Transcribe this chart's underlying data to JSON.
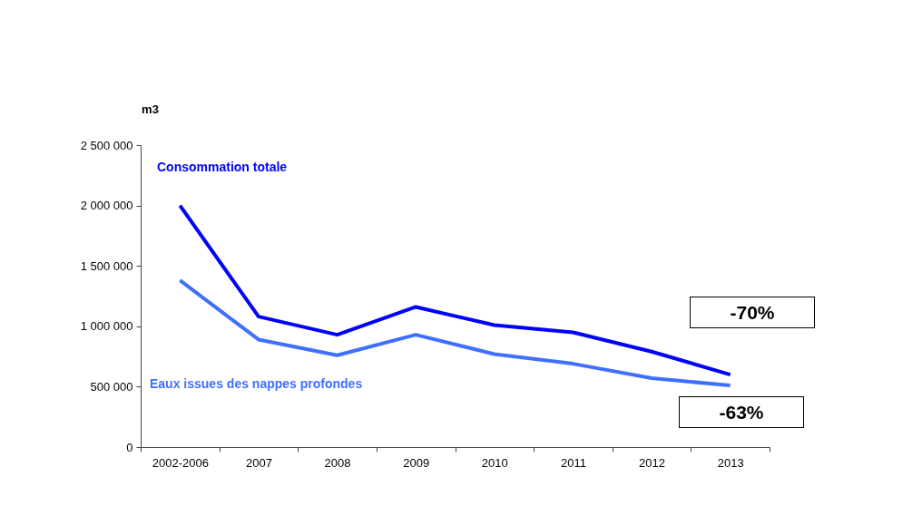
{
  "chart_data": {
    "type": "line",
    "ylabel": "m3",
    "categories": [
      "2002-2006",
      "2007",
      "2008",
      "2009",
      "2010",
      "2011",
      "2012",
      "2013"
    ],
    "series": [
      {
        "name": "Consommation totale",
        "color": "#0000ff",
        "values": [
          2000000,
          1080000,
          930000,
          1160000,
          1010000,
          950000,
          790000,
          600000
        ]
      },
      {
        "name": "Eaux issues des nappes profondes",
        "color": "#3f6fff",
        "values": [
          1380000,
          890000,
          760000,
          930000,
          770000,
          690000,
          570000,
          510000
        ]
      }
    ],
    "ylim": [
      0,
      2500000
    ],
    "yticks": [
      0,
      {
        "value": 500000,
        "label": "500 000"
      },
      {
        "value": 1000000,
        "label": "1 000 000"
      },
      {
        "value": 1500000,
        "label": "1 500 000"
      },
      {
        "value": 2000000,
        "label": "2 000 000"
      },
      {
        "value": 2500000,
        "label": "2 500 000"
      }
    ],
    "grid": false,
    "legend": false,
    "marker": "none",
    "line_style": "solid",
    "annotations": [
      "-70%",
      "-63%"
    ]
  }
}
